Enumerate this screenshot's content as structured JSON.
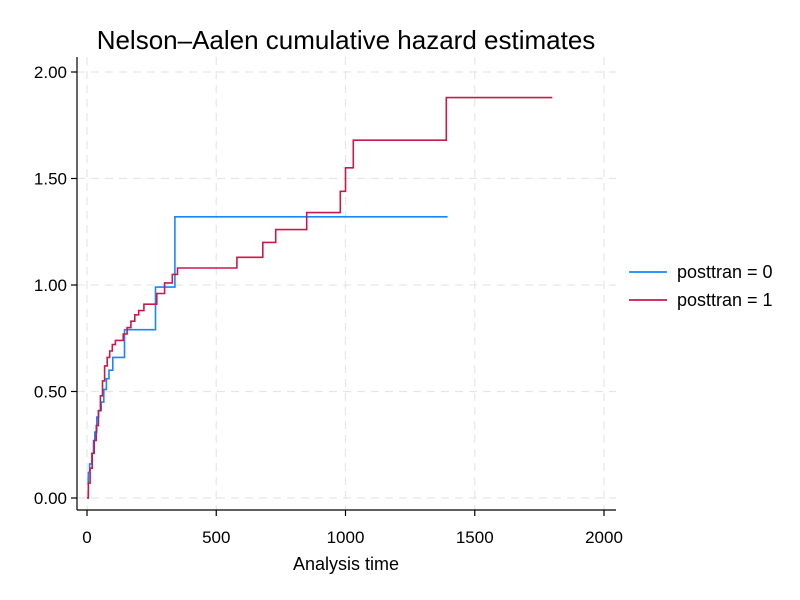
{
  "chart_data": {
    "type": "line",
    "step": true,
    "title": "Nelson–Aalen cumulative hazard estimates",
    "xlabel": "Analysis time",
    "ylabel": "",
    "xlim": [
      0,
      2000
    ],
    "ylim": [
      0,
      2.0
    ],
    "x_ticks": [
      0,
      500,
      1000,
      1500,
      2000
    ],
    "x_tick_labels": [
      "0",
      "500",
      "1000",
      "1500",
      "2000"
    ],
    "y_ticks": [
      0,
      0.5,
      1.0,
      1.5,
      2.0
    ],
    "y_tick_labels": [
      "0.00",
      "0.50",
      "1.00",
      "1.50",
      "2.00"
    ],
    "grid": true,
    "legend_position": "right",
    "series": [
      {
        "name": "posttran = 0",
        "color": "#1a85ff",
        "x": [
          0,
          5,
          10,
          18,
          25,
          30,
          38,
          45,
          55,
          65,
          75,
          85,
          100,
          145,
          155,
          265,
          300,
          340,
          1395
        ],
        "y": [
          0,
          0.12,
          0.16,
          0.21,
          0.27,
          0.31,
          0.38,
          0.41,
          0.45,
          0.51,
          0.56,
          0.6,
          0.66,
          0.79,
          0.79,
          0.99,
          0.99,
          1.32,
          1.32
        ]
      },
      {
        "name": "posttran = 1",
        "color": "#c8194b",
        "x": [
          0,
          5,
          12,
          20,
          28,
          36,
          44,
          52,
          60,
          68,
          78,
          88,
          98,
          110,
          140,
          155,
          170,
          185,
          200,
          220,
          270,
          300,
          330,
          350,
          580,
          680,
          730,
          850,
          980,
          1000,
          1030,
          1390,
          1800
        ],
        "y": [
          0,
          0.07,
          0.14,
          0.21,
          0.27,
          0.34,
          0.41,
          0.48,
          0.55,
          0.62,
          0.66,
          0.69,
          0.72,
          0.74,
          0.77,
          0.8,
          0.83,
          0.86,
          0.88,
          0.91,
          0.96,
          1.01,
          1.05,
          1.08,
          1.13,
          1.2,
          1.26,
          1.34,
          1.44,
          1.55,
          1.68,
          1.88,
          1.88
        ]
      }
    ]
  }
}
